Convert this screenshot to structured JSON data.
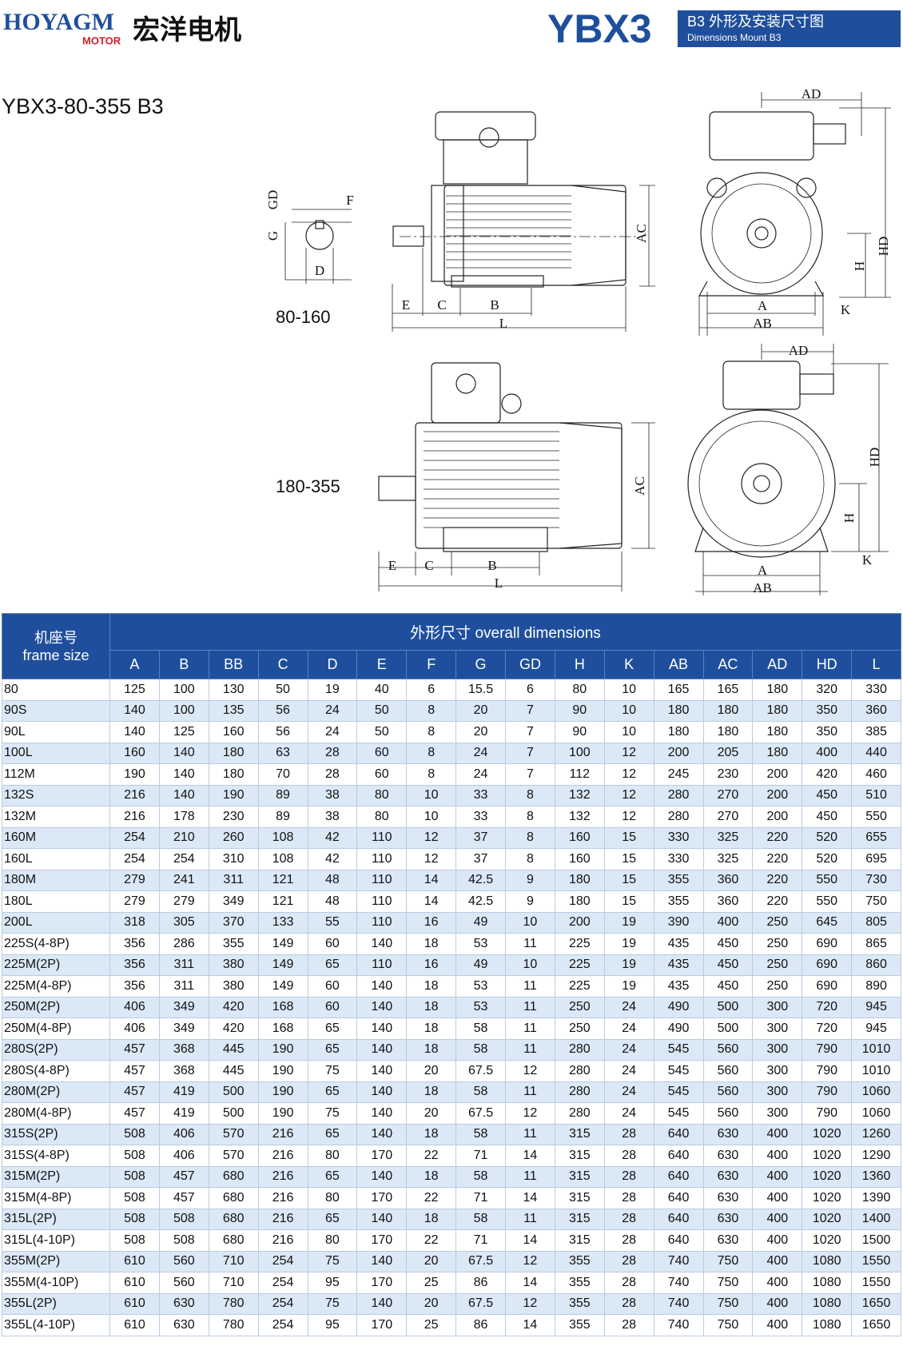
{
  "header": {
    "brand": "HOYAGM",
    "brand_sub": "MOTOR",
    "brand_cn": "宏洋电机",
    "model": "YBX3",
    "badge_cn": "B3 外形及安装尺寸图",
    "badge_en": "Dimensions Mount B3"
  },
  "subtitle": "YBX3-80-355 B3",
  "drawings": {
    "small": {
      "range": "80-160",
      "shaft": {
        "gd": "GD",
        "f": "F",
        "g": "G",
        "d": "D"
      },
      "side": {
        "e": "E",
        "c": "C",
        "b": "B",
        "l": "L",
        "ac": "AC"
      },
      "end": {
        "ad": "AD",
        "hd": "HD",
        "h": "H",
        "k": "K",
        "a": "A",
        "ab": "AB"
      }
    },
    "large": {
      "range": "180-355",
      "side": {
        "e": "E",
        "c": "C",
        "b": "B",
        "l": "L",
        "ac": "AC"
      },
      "end": {
        "ad": "AD",
        "hd": "HD",
        "h": "H",
        "k": "K",
        "a": "A",
        "ab": "AB"
      }
    }
  },
  "table": {
    "frame_cn": "机座号",
    "frame_en": "frame size",
    "group": "外形尺寸 overall dimensions",
    "columns": [
      "A",
      "B",
      "BB",
      "C",
      "D",
      "E",
      "F",
      "G",
      "GD",
      "H",
      "K",
      "AB",
      "AC",
      "AD",
      "HD",
      "L"
    ],
    "rows": [
      {
        "frame": "80",
        "values": [
          125,
          100,
          130,
          50,
          19,
          40,
          6,
          15.5,
          6,
          80,
          10,
          165,
          165,
          180,
          320,
          330
        ]
      },
      {
        "frame": "90S",
        "values": [
          140,
          100,
          135,
          56,
          24,
          50,
          8,
          20,
          7,
          90,
          10,
          180,
          180,
          180,
          350,
          360
        ]
      },
      {
        "frame": "90L",
        "values": [
          140,
          125,
          160,
          56,
          24,
          50,
          8,
          20,
          7,
          90,
          10,
          180,
          180,
          180,
          350,
          385
        ]
      },
      {
        "frame": "100L",
        "values": [
          160,
          140,
          180,
          63,
          28,
          60,
          8,
          24,
          7,
          100,
          12,
          200,
          205,
          180,
          400,
          440
        ]
      },
      {
        "frame": "112M",
        "values": [
          190,
          140,
          180,
          70,
          28,
          60,
          8,
          24,
          7,
          112,
          12,
          245,
          230,
          200,
          420,
          460
        ]
      },
      {
        "frame": "132S",
        "values": [
          216,
          140,
          190,
          89,
          38,
          80,
          10,
          33,
          8,
          132,
          12,
          280,
          270,
          200,
          450,
          510
        ]
      },
      {
        "frame": "132M",
        "values": [
          216,
          178,
          230,
          89,
          38,
          80,
          10,
          33,
          8,
          132,
          12,
          280,
          270,
          200,
          450,
          550
        ]
      },
      {
        "frame": "160M",
        "values": [
          254,
          210,
          260,
          108,
          42,
          110,
          12,
          37,
          8,
          160,
          15,
          330,
          325,
          220,
          520,
          655
        ]
      },
      {
        "frame": "160L",
        "values": [
          254,
          254,
          310,
          108,
          42,
          110,
          12,
          37,
          8,
          160,
          15,
          330,
          325,
          220,
          520,
          695
        ]
      },
      {
        "frame": "180M",
        "values": [
          279,
          241,
          311,
          121,
          48,
          110,
          14,
          42.5,
          9,
          180,
          15,
          355,
          360,
          220,
          550,
          730
        ]
      },
      {
        "frame": "180L",
        "values": [
          279,
          279,
          349,
          121,
          48,
          110,
          14,
          42.5,
          9,
          180,
          15,
          355,
          360,
          220,
          550,
          750
        ]
      },
      {
        "frame": "200L",
        "values": [
          318,
          305,
          370,
          133,
          55,
          110,
          16,
          49,
          10,
          200,
          19,
          390,
          400,
          250,
          645,
          805
        ]
      },
      {
        "frame": "225S(4-8P)",
        "values": [
          356,
          286,
          355,
          149,
          60,
          140,
          18,
          53,
          11,
          225,
          19,
          435,
          450,
          250,
          690,
          865
        ]
      },
      {
        "frame": "225M(2P)",
        "values": [
          356,
          311,
          380,
          149,
          65,
          110,
          16,
          49,
          10,
          225,
          19,
          435,
          450,
          250,
          690,
          860
        ]
      },
      {
        "frame": "225M(4-8P)",
        "values": [
          356,
          311,
          380,
          149,
          60,
          140,
          18,
          53,
          11,
          225,
          19,
          435,
          450,
          250,
          690,
          890
        ]
      },
      {
        "frame": "250M(2P)",
        "values": [
          406,
          349,
          420,
          168,
          60,
          140,
          18,
          53,
          11,
          250,
          24,
          490,
          500,
          300,
          720,
          945
        ]
      },
      {
        "frame": "250M(4-8P)",
        "values": [
          406,
          349,
          420,
          168,
          65,
          140,
          18,
          58,
          11,
          250,
          24,
          490,
          500,
          300,
          720,
          945
        ]
      },
      {
        "frame": "280S(2P)",
        "values": [
          457,
          368,
          445,
          190,
          65,
          140,
          18,
          58,
          11,
          280,
          24,
          545,
          560,
          300,
          790,
          1010
        ]
      },
      {
        "frame": "280S(4-8P)",
        "values": [
          457,
          368,
          445,
          190,
          75,
          140,
          20,
          67.5,
          12,
          280,
          24,
          545,
          560,
          300,
          790,
          1010
        ]
      },
      {
        "frame": "280M(2P)",
        "values": [
          457,
          419,
          500,
          190,
          65,
          140,
          18,
          58,
          11,
          280,
          24,
          545,
          560,
          300,
          790,
          1060
        ]
      },
      {
        "frame": "280M(4-8P)",
        "values": [
          457,
          419,
          500,
          190,
          75,
          140,
          20,
          67.5,
          12,
          280,
          24,
          545,
          560,
          300,
          790,
          1060
        ]
      },
      {
        "frame": "315S(2P)",
        "values": [
          508,
          406,
          570,
          216,
          65,
          140,
          18,
          58,
          11,
          315,
          28,
          640,
          630,
          400,
          1020,
          1260
        ]
      },
      {
        "frame": "315S(4-8P)",
        "values": [
          508,
          406,
          570,
          216,
          80,
          170,
          22,
          71,
          14,
          315,
          28,
          640,
          630,
          400,
          1020,
          1290
        ]
      },
      {
        "frame": "315M(2P)",
        "values": [
          508,
          457,
          680,
          216,
          65,
          140,
          18,
          58,
          11,
          315,
          28,
          640,
          630,
          400,
          1020,
          1360
        ]
      },
      {
        "frame": "315M(4-8P)",
        "values": [
          508,
          457,
          680,
          216,
          80,
          170,
          22,
          71,
          14,
          315,
          28,
          640,
          630,
          400,
          1020,
          1390
        ]
      },
      {
        "frame": "315L(2P)",
        "values": [
          508,
          508,
          680,
          216,
          65,
          140,
          18,
          58,
          11,
          315,
          28,
          640,
          630,
          400,
          1020,
          1400
        ]
      },
      {
        "frame": "315L(4-10P)",
        "values": [
          508,
          508,
          680,
          216,
          80,
          170,
          22,
          71,
          14,
          315,
          28,
          640,
          630,
          400,
          1020,
          1500
        ]
      },
      {
        "frame": "355M(2P)",
        "values": [
          610,
          560,
          710,
          254,
          75,
          140,
          20,
          67.5,
          12,
          355,
          28,
          740,
          750,
          400,
          1080,
          1550
        ]
      },
      {
        "frame": "355M(4-10P)",
        "values": [
          610,
          560,
          710,
          254,
          95,
          170,
          25,
          86,
          14,
          355,
          28,
          740,
          750,
          400,
          1080,
          1550
        ]
      },
      {
        "frame": "355L(2P)",
        "values": [
          610,
          630,
          780,
          254,
          75,
          140,
          20,
          67.5,
          12,
          355,
          28,
          740,
          750,
          400,
          1080,
          1650
        ]
      },
      {
        "frame": "355L(4-10P)",
        "values": [
          610,
          630,
          780,
          254,
          95,
          170,
          25,
          86,
          14,
          355,
          28,
          740,
          750,
          400,
          1080,
          1650
        ]
      }
    ]
  }
}
